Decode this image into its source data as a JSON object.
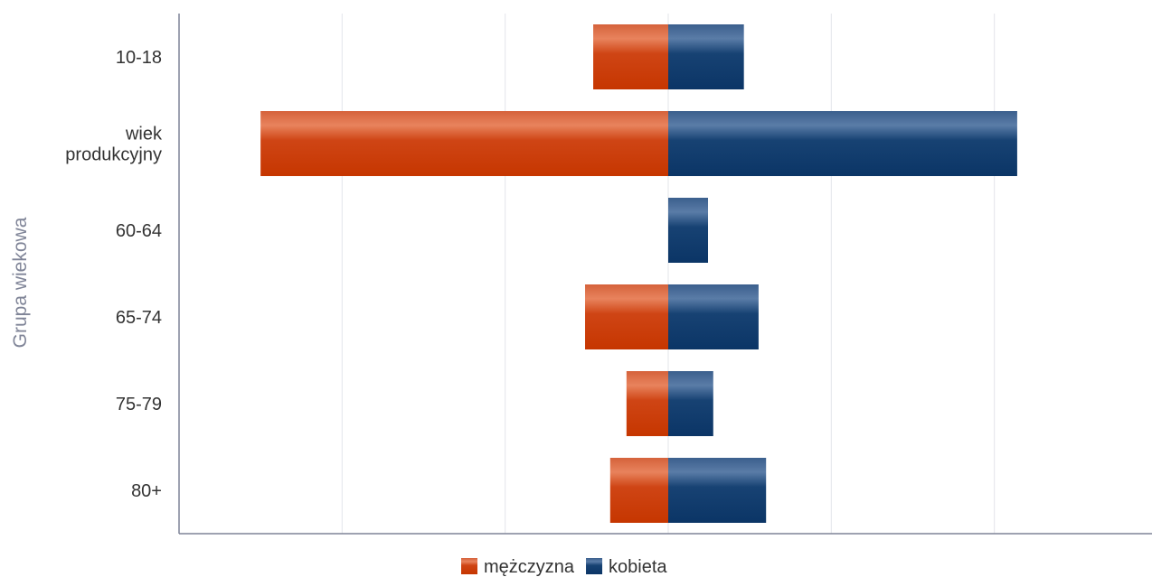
{
  "chart_data": {
    "type": "bar",
    "orientation": "horizontal",
    "stacking": "diverging",
    "categories": [
      [
        "10-18"
      ],
      [
        "wiek",
        "produkcyjny"
      ],
      [
        "60-64"
      ],
      [
        "65-74"
      ],
      [
        "75-79"
      ],
      [
        "80+"
      ]
    ],
    "series": [
      {
        "name": "mężczyzna",
        "color": "#cc3a00",
        "values": [
          -23,
          -125,
          0,
          -25.5,
          -12.8,
          -17.8
        ]
      },
      {
        "name": "kobieta",
        "color": "#0e3b6d",
        "values": [
          23.2,
          107,
          12.2,
          27.7,
          13.8,
          30
        ]
      }
    ],
    "ylabel": "Grupa wiekowa",
    "xlabel": "",
    "xlim": [
      -150,
      150
    ],
    "grid_step": 50,
    "grid": true,
    "x_tick_labels_shown": false,
    "legend": {
      "position": "bottom-center",
      "entries": [
        "mężczyzna",
        "kobieta"
      ]
    }
  }
}
